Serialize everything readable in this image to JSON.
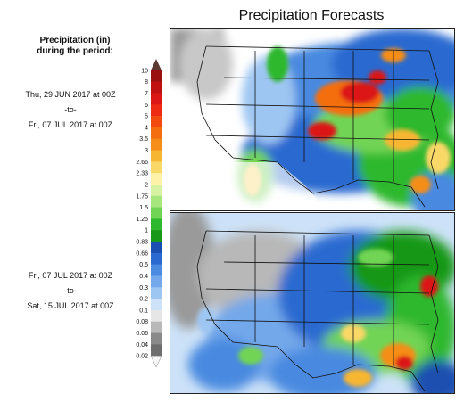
{
  "title": "Precipitation Forecasts",
  "legend": {
    "heading_line1": "Precipitation (in)",
    "heading_line2": "during the period:",
    "ticks": [
      "10",
      "8",
      "7",
      "6",
      "5",
      "4",
      "3.5",
      "3",
      "2.66",
      "2.33",
      "2",
      "1.75",
      "1.5",
      "1.25",
      "1",
      "0.83",
      "0.66",
      "0.5",
      "0.4",
      "0.3",
      "0.2",
      "0.1",
      "0.08",
      "0.06",
      "0.04",
      "0.02"
    ],
    "colors": [
      "#5a3a32",
      "#9a0f0f",
      "#c01010",
      "#dc1616",
      "#ee2a14",
      "#f24a10",
      "#f46e10",
      "#f58e18",
      "#f7b632",
      "#fad868",
      "#fdf2a8",
      "#d6f2a2",
      "#a6e67c",
      "#72d454",
      "#2eb82e",
      "#189818",
      "#1a4fb0",
      "#2a6ad0",
      "#4a8ae0",
      "#73a8ea",
      "#9ec6f2",
      "#cde2f8",
      "#e6e6e6",
      "#b8b8b8",
      "#8a8a8a",
      "#6e6e6e",
      "#f6f6f6"
    ]
  },
  "periods": [
    {
      "start": "Thu, 29 JUN 2017 at 00Z",
      "sep": "-to-",
      "end": "Fri, 07 JUL 2017 at 00Z"
    },
    {
      "start": "Fri, 07 JUL 2017 at 00Z",
      "sep": "-to-",
      "end": "Sat, 15 JUL 2017 at 00Z"
    }
  ]
}
